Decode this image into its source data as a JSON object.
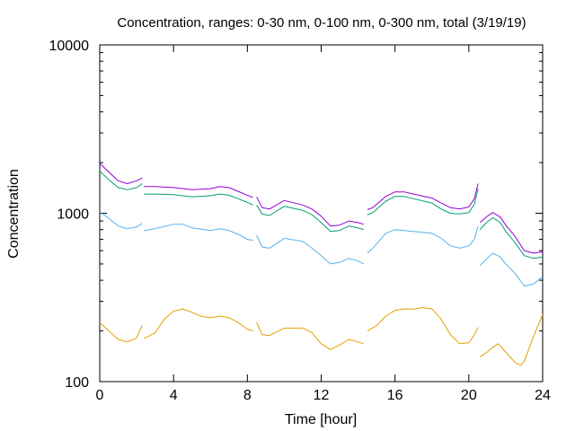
{
  "chart_data": {
    "type": "line",
    "title": "Concentration, ranges: 0-30 nm, 0-100 nm, 0-300 nm, total (3/19/19)",
    "xlabel": "Time [hour]",
    "ylabel": "Concentration",
    "xlim": [
      0,
      24
    ],
    "ylim": [
      100,
      10000
    ],
    "y_scale": "log",
    "grid": false,
    "x_ticks": [
      0,
      4,
      8,
      12,
      16,
      20,
      24
    ],
    "x_tick_labels": [
      "0",
      "4",
      "8",
      "12",
      "16",
      "20",
      "24"
    ],
    "y_ticks": [
      100,
      1000,
      10000
    ],
    "y_tick_labels": [
      "100",
      "1000",
      "10000"
    ],
    "series": [
      {
        "color": "#9400d3",
        "segments": [
          [
            [
              0,
              1980
            ],
            [
              0.5,
              1750
            ],
            [
              1,
              1560
            ],
            [
              1.5,
              1500
            ],
            [
              2,
              1560
            ],
            [
              2.3,
              1620
            ]
          ],
          [
            [
              2.4,
              1440
            ],
            [
              3,
              1440
            ],
            [
              4,
              1420
            ],
            [
              5,
              1380
            ],
            [
              6,
              1400
            ],
            [
              6.5,
              1440
            ],
            [
              7,
              1420
            ],
            [
              7.5,
              1350
            ],
            [
              8,
              1280
            ],
            [
              8.3,
              1240
            ]
          ],
          [
            [
              8.5,
              1250
            ],
            [
              8.8,
              1080
            ],
            [
              9.2,
              1060
            ],
            [
              10,
              1190
            ],
            [
              11,
              1120
            ],
            [
              11.5,
              1060
            ],
            [
              12,
              960
            ],
            [
              12.5,
              840
            ],
            [
              13,
              850
            ],
            [
              13.5,
              900
            ],
            [
              14,
              880
            ],
            [
              14.3,
              860
            ]
          ],
          [
            [
              14.5,
              1050
            ],
            [
              14.8,
              1080
            ],
            [
              15.5,
              1260
            ],
            [
              16,
              1340
            ],
            [
              16.5,
              1340
            ],
            [
              17,
              1300
            ],
            [
              18,
              1230
            ],
            [
              18.5,
              1150
            ],
            [
              19,
              1080
            ],
            [
              19.5,
              1060
            ],
            [
              20,
              1090
            ],
            [
              20.3,
              1220
            ],
            [
              20.5,
              1500
            ]
          ],
          [
            [
              20.6,
              880
            ],
            [
              21,
              960
            ],
            [
              21.3,
              1010
            ],
            [
              21.7,
              950
            ],
            [
              22,
              850
            ],
            [
              22.5,
              730
            ],
            [
              23,
              600
            ],
            [
              23.5,
              580
            ],
            [
              24,
              590
            ]
          ]
        ]
      },
      {
        "color": "#009e73",
        "segments": [
          [
            [
              0,
              1780
            ],
            [
              0.5,
              1580
            ],
            [
              1,
              1420
            ],
            [
              1.5,
              1380
            ],
            [
              2,
              1420
            ],
            [
              2.3,
              1500
            ]
          ],
          [
            [
              2.4,
              1300
            ],
            [
              3,
              1300
            ],
            [
              4,
              1290
            ],
            [
              5,
              1250
            ],
            [
              6,
              1270
            ],
            [
              6.5,
              1300
            ],
            [
              7,
              1280
            ],
            [
              7.5,
              1220
            ],
            [
              8,
              1160
            ],
            [
              8.3,
              1120
            ]
          ],
          [
            [
              8.5,
              1120
            ],
            [
              8.8,
              990
            ],
            [
              9.2,
              970
            ],
            [
              10,
              1100
            ],
            [
              11,
              1040
            ],
            [
              11.5,
              980
            ],
            [
              12,
              880
            ],
            [
              12.5,
              780
            ],
            [
              13,
              790
            ],
            [
              13.5,
              840
            ],
            [
              14,
              820
            ],
            [
              14.3,
              800
            ]
          ],
          [
            [
              14.5,
              980
            ],
            [
              14.8,
              1010
            ],
            [
              15.5,
              1180
            ],
            [
              16,
              1260
            ],
            [
              16.5,
              1260
            ],
            [
              17,
              1220
            ],
            [
              18,
              1150
            ],
            [
              18.5,
              1060
            ],
            [
              19,
              1000
            ],
            [
              19.5,
              990
            ],
            [
              20,
              1010
            ],
            [
              20.3,
              1130
            ],
            [
              20.5,
              1400
            ]
          ],
          [
            [
              20.6,
              800
            ],
            [
              21,
              890
            ],
            [
              21.3,
              940
            ],
            [
              21.7,
              880
            ],
            [
              22,
              780
            ],
            [
              22.5,
              670
            ],
            [
              23,
              560
            ],
            [
              23.5,
              540
            ],
            [
              24,
              550
            ]
          ]
        ]
      },
      {
        "color": "#56b4e9",
        "segments": [
          [
            [
              0,
              1020
            ],
            [
              0.5,
              930
            ],
            [
              1,
              840
            ],
            [
              1.5,
              810
            ],
            [
              2,
              830
            ],
            [
              2.3,
              870
            ]
          ],
          [
            [
              2.4,
              790
            ],
            [
              3,
              810
            ],
            [
              4,
              860
            ],
            [
              4.5,
              860
            ],
            [
              5,
              820
            ],
            [
              6,
              790
            ],
            [
              6.5,
              810
            ],
            [
              7,
              790
            ],
            [
              7.5,
              750
            ],
            [
              8,
              700
            ],
            [
              8.3,
              690
            ]
          ],
          [
            [
              8.5,
              740
            ],
            [
              8.8,
              630
            ],
            [
              9.2,
              620
            ],
            [
              10,
              710
            ],
            [
              11,
              680
            ],
            [
              11.5,
              620
            ],
            [
              12,
              560
            ],
            [
              12.5,
              500
            ],
            [
              13,
              510
            ],
            [
              13.5,
              540
            ],
            [
              14,
              520
            ],
            [
              14.3,
              500
            ]
          ],
          [
            [
              14.5,
              580
            ],
            [
              14.8,
              620
            ],
            [
              15.5,
              760
            ],
            [
              16,
              800
            ],
            [
              16.5,
              790
            ],
            [
              17,
              780
            ],
            [
              18,
              760
            ],
            [
              18.5,
              710
            ],
            [
              19,
              640
            ],
            [
              19.5,
              620
            ],
            [
              20,
              640
            ],
            [
              20.3,
              700
            ],
            [
              20.5,
              840
            ]
          ],
          [
            [
              20.6,
              490
            ],
            [
              21,
              540
            ],
            [
              21.3,
              580
            ],
            [
              21.7,
              550
            ],
            [
              22,
              500
            ],
            [
              22.5,
              440
            ],
            [
              23,
              370
            ],
            [
              23.5,
              380
            ],
            [
              24,
              420
            ]
          ]
        ]
      },
      {
        "color": "#e69f00",
        "segments": [
          [
            [
              0,
              225
            ],
            [
              0.5,
              200
            ],
            [
              1,
              178
            ],
            [
              1.5,
              172
            ],
            [
              2,
              182
            ],
            [
              2.3,
              215
            ]
          ],
          [
            [
              2.4,
              180
            ],
            [
              3,
              195
            ],
            [
              3.5,
              235
            ],
            [
              4,
              262
            ],
            [
              4.5,
              270
            ],
            [
              5,
              258
            ],
            [
              5.5,
              244
            ],
            [
              6,
              240
            ],
            [
              6.5,
              245
            ],
            [
              7,
              240
            ],
            [
              7.5,
              224
            ],
            [
              8,
              205
            ],
            [
              8.3,
              200
            ]
          ],
          [
            [
              8.5,
              225
            ],
            [
              8.8,
              190
            ],
            [
              9.2,
              188
            ],
            [
              10,
              208
            ],
            [
              11,
              208
            ],
            [
              11.5,
              195
            ],
            [
              12,
              168
            ],
            [
              12.5,
              155
            ],
            [
              13,
              165
            ],
            [
              13.5,
              178
            ],
            [
              14,
              172
            ],
            [
              14.3,
              168
            ]
          ],
          [
            [
              14.5,
              200
            ],
            [
              15,
              215
            ],
            [
              15.5,
              245
            ],
            [
              16,
              265
            ],
            [
              16.5,
              270
            ],
            [
              17,
              270
            ],
            [
              17.5,
              275
            ],
            [
              18,
              270
            ],
            [
              18.5,
              235
            ],
            [
              19,
              190
            ],
            [
              19.5,
              168
            ],
            [
              20,
              170
            ],
            [
              20.3,
              190
            ],
            [
              20.5,
              210
            ]
          ],
          [
            [
              20.6,
              140
            ],
            [
              21,
              150
            ],
            [
              21.3,
              160
            ],
            [
              21.6,
              168
            ],
            [
              22,
              150
            ],
            [
              22.5,
              130
            ],
            [
              22.8,
              125
            ],
            [
              23,
              132
            ],
            [
              23.5,
              185
            ],
            [
              24,
              250
            ]
          ]
        ]
      }
    ]
  }
}
